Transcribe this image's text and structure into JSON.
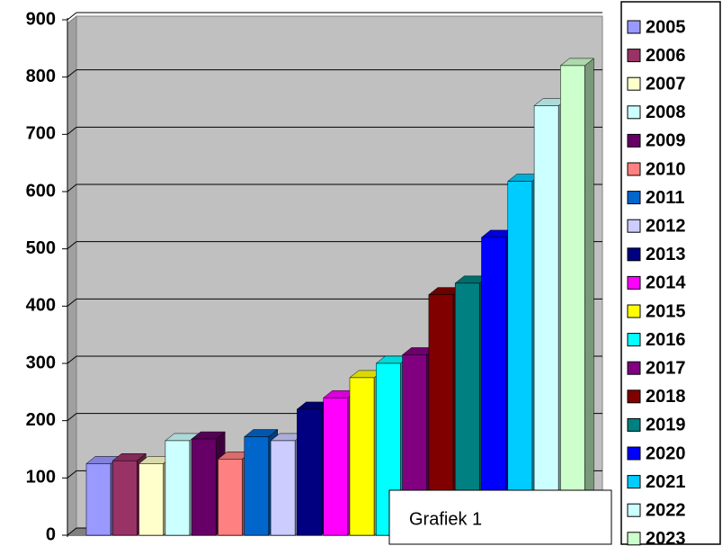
{
  "chart_data": {
    "type": "bar3d",
    "annotation": "Grafiek 1",
    "ylim": [
      0,
      900
    ],
    "yticks": [
      0,
      100,
      200,
      300,
      400,
      500,
      600,
      700,
      800,
      900
    ],
    "grid": true,
    "legend": "right",
    "series": [
      {
        "name": "2005",
        "color": "#9999ff",
        "values": [
          125
        ]
      },
      {
        "name": "2006",
        "color": "#993366",
        "values": [
          130
        ]
      },
      {
        "name": "2007",
        "color": "#ffffcc",
        "values": [
          125
        ]
      },
      {
        "name": "2008",
        "color": "#ccffff",
        "values": [
          165
        ]
      },
      {
        "name": "2009",
        "color": "#660066",
        "values": [
          168
        ]
      },
      {
        "name": "2010",
        "color": "#ff8080",
        "values": [
          133
        ]
      },
      {
        "name": "2011",
        "color": "#0066cc",
        "values": [
          172
        ]
      },
      {
        "name": "2012",
        "color": "#ccccff",
        "values": [
          165
        ]
      },
      {
        "name": "2013",
        "color": "#000080",
        "values": [
          220
        ]
      },
      {
        "name": "2014",
        "color": "#ff00ff",
        "values": [
          240
        ]
      },
      {
        "name": "2015",
        "color": "#ffff00",
        "values": [
          275
        ]
      },
      {
        "name": "2016",
        "color": "#00ffff",
        "values": [
          300
        ]
      },
      {
        "name": "2017",
        "color": "#800080",
        "values": [
          315
        ]
      },
      {
        "name": "2018",
        "color": "#800000",
        "values": [
          420
        ]
      },
      {
        "name": "2019",
        "color": "#008080",
        "values": [
          440
        ]
      },
      {
        "name": "2020",
        "color": "#0000ff",
        "values": [
          520
        ]
      },
      {
        "name": "2021",
        "color": "#00ccff",
        "values": [
          618
        ]
      },
      {
        "name": "2022",
        "color": "#ccffff",
        "values": [
          750
        ]
      },
      {
        "name": "2023",
        "color": "#ccffcc",
        "values": [
          820
        ]
      }
    ]
  }
}
